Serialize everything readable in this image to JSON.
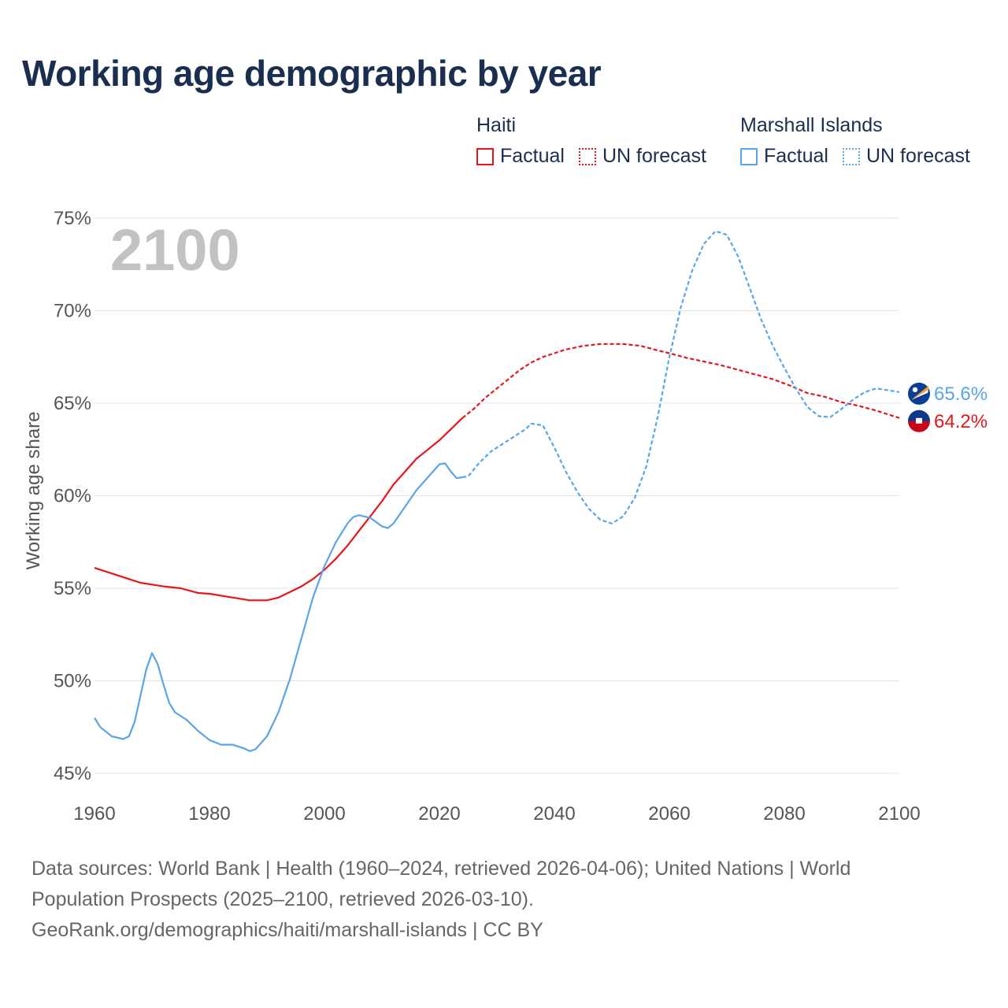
{
  "title": "Working age demographic by year",
  "legend": {
    "haiti": {
      "name": "Haiti",
      "factual": "Factual",
      "forecast": "UN forecast",
      "color": "#e8141a"
    },
    "marshall": {
      "name": "Marshall Islands",
      "factual": "Factual",
      "forecast": "UN forecast",
      "color": "#5aa5e6"
    }
  },
  "footer": {
    "line1": "Data sources: World Bank | Health (1960–2024, retrieved 2026-04-06); United Nations | World",
    "line2": "Population Prospects (2025–2100, retrieved 2026-03-10).",
    "line3": "GeoRank.org/demographics/haiti/marshall-islands | CC BY"
  },
  "chart_data": {
    "type": "line",
    "title": "Working age demographic by year",
    "year_watermark": "2100",
    "xlabel": "",
    "ylabel": "Working age share",
    "xlim": [
      1960,
      2100
    ],
    "ylim": [
      45,
      75
    ],
    "x_ticks": [
      "1960",
      "1980",
      "2000",
      "2020",
      "2040",
      "2060",
      "2080",
      "2100"
    ],
    "y_ticks": [
      "45%",
      "50%",
      "55%",
      "60%",
      "65%",
      "70%",
      "75%"
    ],
    "series": [
      {
        "name": "Haiti",
        "color": "#e8141a",
        "end_label": "64.2%",
        "factual": [
          [
            1960,
            56.1
          ],
          [
            1963,
            55.8
          ],
          [
            1966,
            55.5
          ],
          [
            1968,
            55.3
          ],
          [
            1970,
            55.2
          ],
          [
            1972,
            55.1
          ],
          [
            1975,
            55.0
          ],
          [
            1978,
            54.75
          ],
          [
            1980,
            54.7
          ],
          [
            1983,
            54.55
          ],
          [
            1985,
            54.45
          ],
          [
            1987,
            54.35
          ],
          [
            1990,
            54.35
          ],
          [
            1992,
            54.5
          ],
          [
            1994,
            54.8
          ],
          [
            1996,
            55.1
          ],
          [
            1998,
            55.5
          ],
          [
            2000,
            56.0
          ],
          [
            2002,
            56.6
          ],
          [
            2004,
            57.3
          ],
          [
            2006,
            58.1
          ],
          [
            2008,
            58.9
          ],
          [
            2010,
            59.7
          ],
          [
            2012,
            60.6
          ],
          [
            2014,
            61.3
          ],
          [
            2016,
            62.0
          ],
          [
            2018,
            62.5
          ],
          [
            2020,
            63.0
          ],
          [
            2022,
            63.6
          ],
          [
            2024,
            64.2
          ]
        ],
        "forecast": [
          [
            2024,
            64.2
          ],
          [
            2026,
            64.7
          ],
          [
            2028,
            65.3
          ],
          [
            2030,
            65.8
          ],
          [
            2032,
            66.3
          ],
          [
            2034,
            66.8
          ],
          [
            2036,
            67.2
          ],
          [
            2038,
            67.5
          ],
          [
            2040,
            67.7
          ],
          [
            2042,
            67.9
          ],
          [
            2045,
            68.1
          ],
          [
            2048,
            68.2
          ],
          [
            2052,
            68.2
          ],
          [
            2055,
            68.1
          ],
          [
            2058,
            67.85
          ],
          [
            2060,
            67.7
          ],
          [
            2063,
            67.45
          ],
          [
            2066,
            67.25
          ],
          [
            2069,
            67.05
          ],
          [
            2072,
            66.8
          ],
          [
            2075,
            66.55
          ],
          [
            2078,
            66.3
          ],
          [
            2081,
            65.95
          ],
          [
            2084,
            65.55
          ],
          [
            2087,
            65.35
          ],
          [
            2090,
            65.05
          ],
          [
            2093,
            64.85
          ],
          [
            2096,
            64.6
          ],
          [
            2098,
            64.4
          ],
          [
            2100,
            64.2
          ]
        ]
      },
      {
        "name": "Marshall Islands",
        "color": "#5aa5e6",
        "end_label": "65.6%",
        "factual": [
          [
            1960,
            48.0
          ],
          [
            1961,
            47.5
          ],
          [
            1963,
            47.0
          ],
          [
            1965,
            46.85
          ],
          [
            1966,
            47.0
          ],
          [
            1967,
            47.8
          ],
          [
            1968,
            49.2
          ],
          [
            1969,
            50.6
          ],
          [
            1970,
            51.5
          ],
          [
            1971,
            50.9
          ],
          [
            1972,
            49.8
          ],
          [
            1973,
            48.8
          ],
          [
            1974,
            48.3
          ],
          [
            1976,
            47.9
          ],
          [
            1978,
            47.3
          ],
          [
            1980,
            46.8
          ],
          [
            1982,
            46.55
          ],
          [
            1984,
            46.55
          ],
          [
            1986,
            46.35
          ],
          [
            1987,
            46.2
          ],
          [
            1988,
            46.3
          ],
          [
            1990,
            47.0
          ],
          [
            1992,
            48.3
          ],
          [
            1994,
            50.1
          ],
          [
            1996,
            52.3
          ],
          [
            1998,
            54.5
          ],
          [
            2000,
            56.2
          ],
          [
            2002,
            57.5
          ],
          [
            2004,
            58.5
          ],
          [
            2005,
            58.85
          ],
          [
            2006,
            58.95
          ],
          [
            2008,
            58.8
          ],
          [
            2010,
            58.35
          ],
          [
            2011,
            58.25
          ],
          [
            2012,
            58.5
          ],
          [
            2014,
            59.4
          ],
          [
            2016,
            60.3
          ],
          [
            2018,
            61.0
          ],
          [
            2020,
            61.7
          ],
          [
            2021,
            61.75
          ],
          [
            2022,
            61.3
          ],
          [
            2023,
            60.95
          ],
          [
            2024,
            61.0
          ]
        ],
        "forecast": [
          [
            2024,
            61.0
          ],
          [
            2025,
            61.05
          ],
          [
            2027,
            61.8
          ],
          [
            2029,
            62.4
          ],
          [
            2031,
            62.8
          ],
          [
            2033,
            63.2
          ],
          [
            2035,
            63.6
          ],
          [
            2036,
            63.9
          ],
          [
            2038,
            63.8
          ],
          [
            2040,
            62.6
          ],
          [
            2042,
            61.3
          ],
          [
            2044,
            60.2
          ],
          [
            2046,
            59.3
          ],
          [
            2048,
            58.7
          ],
          [
            2050,
            58.5
          ],
          [
            2052,
            58.9
          ],
          [
            2054,
            59.9
          ],
          [
            2056,
            61.6
          ],
          [
            2058,
            64.3
          ],
          [
            2060,
            67.5
          ],
          [
            2062,
            70.2
          ],
          [
            2064,
            72.2
          ],
          [
            2066,
            73.6
          ],
          [
            2068,
            74.3
          ],
          [
            2070,
            74.1
          ],
          [
            2072,
            72.9
          ],
          [
            2074,
            71.2
          ],
          [
            2076,
            69.5
          ],
          [
            2078,
            68.1
          ],
          [
            2080,
            66.9
          ],
          [
            2082,
            65.8
          ],
          [
            2084,
            64.8
          ],
          [
            2086,
            64.3
          ],
          [
            2088,
            64.25
          ],
          [
            2090,
            64.7
          ],
          [
            2092,
            65.2
          ],
          [
            2094,
            65.6
          ],
          [
            2096,
            65.8
          ],
          [
            2098,
            65.7
          ],
          [
            2100,
            65.6
          ]
        ]
      }
    ]
  }
}
